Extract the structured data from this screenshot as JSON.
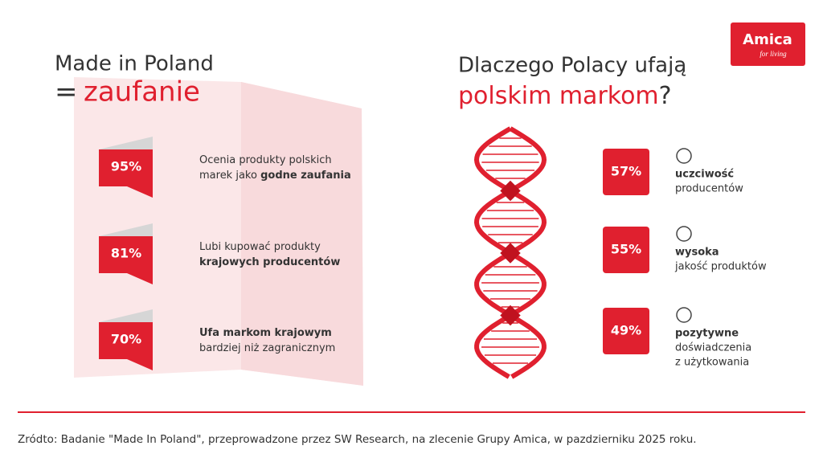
{
  "logo": {
    "name": "Amica",
    "tagline": "for living"
  },
  "left": {
    "title_line1": "Made in Poland",
    "title_eq": "=",
    "title_line2": "zaufanie",
    "items": [
      {
        "value": "95%",
        "lines": [
          [
            {
              "t": "Ocenia produkty polskich",
              "b": false
            }
          ],
          [
            {
              "t": "marek jako ",
              "b": false
            },
            {
              "t": "godne zaufania",
              "b": true
            }
          ]
        ]
      },
      {
        "value": "81%",
        "lines": [
          [
            {
              "t": "Lubi kupować produkty",
              "b": false
            }
          ],
          [
            {
              "t": "krajowych producentów",
              "b": true
            }
          ]
        ]
      },
      {
        "value": "70%",
        "lines": [
          [
            {
              "t": "Ufa markom krajowym",
              "b": true
            }
          ],
          [
            {
              "t": "bardziej niż zagranicznym",
              "b": false
            }
          ]
        ]
      }
    ]
  },
  "right": {
    "title_line1": "Dlaczego Polacy ufają",
    "title_line2": "polskim markom",
    "title_mark": "?",
    "items": [
      {
        "value": "57%",
        "lines": [
          {
            "t": "uczciwość",
            "b": true
          },
          {
            "t": "producentów",
            "b": false
          }
        ]
      },
      {
        "value": "55%",
        "lines": [
          {
            "t": "wysoka",
            "b": true
          },
          {
            "t": "jakość produktów",
            "b": false
          }
        ]
      },
      {
        "value": "49%",
        "lines": [
          {
            "t": "pozytywne",
            "b": true
          },
          {
            "t": "doświadczenia",
            "b": false
          },
          {
            "t": "z użytkowania",
            "b": false
          }
        ]
      }
    ]
  },
  "footer": {
    "source": "Zródto: Badanie \"Made In Poland\", przeprowadzone przez SW Research, na zlecenie Grupy Amica, w pazdzierniku 2025 roku."
  }
}
